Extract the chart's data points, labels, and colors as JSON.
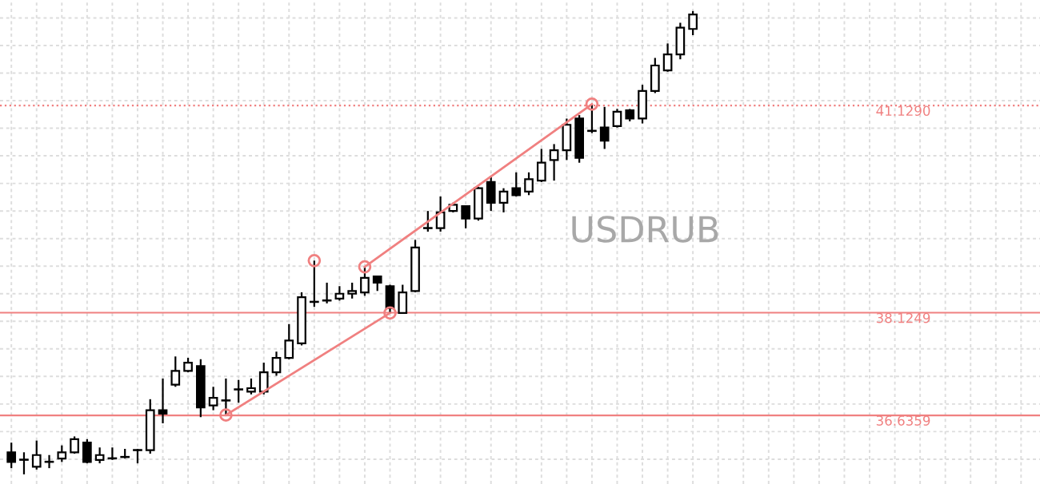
{
  "chart_data": {
    "type": "candlestick",
    "title": "USDRUB",
    "categories": [
      null,
      null,
      null,
      null,
      null,
      null,
      null,
      null,
      null,
      null,
      null,
      null,
      null,
      null,
      null,
      null,
      null,
      null,
      null,
      null,
      null,
      null,
      null,
      null,
      null,
      null,
      null,
      null,
      null,
      null,
      null,
      null,
      null,
      null,
      null,
      null,
      null,
      null,
      null,
      null,
      null,
      null,
      null,
      null,
      null,
      null,
      null,
      null,
      null,
      null,
      null,
      null,
      null,
      null,
      null,
      null,
      null,
      null,
      null,
      null,
      null,
      null,
      null,
      null,
      null,
      null,
      null,
      null,
      null,
      null,
      null,
      null,
      null,
      null,
      null,
      null,
      null,
      null,
      null,
      null,
      null,
      null
    ],
    "ohlc": [
      [
        36.1,
        36.24,
        35.87,
        35.96
      ],
      [
        35.99,
        36.1,
        35.78,
        35.99
      ],
      [
        35.89,
        36.27,
        35.85,
        36.06
      ],
      [
        35.96,
        36.06,
        35.87,
        35.96
      ],
      [
        36.01,
        36.2,
        35.96,
        36.1
      ],
      [
        36.1,
        36.33,
        36.08,
        36.29
      ],
      [
        36.24,
        36.29,
        35.94,
        35.96
      ],
      [
        35.99,
        36.17,
        35.94,
        36.06
      ],
      [
        36.01,
        36.17,
        35.99,
        36.01
      ],
      [
        36.03,
        36.15,
        36.01,
        36.03
      ],
      [
        36.13,
        36.15,
        35.94,
        36.13
      ],
      [
        36.13,
        36.87,
        36.08,
        36.71
      ],
      [
        36.71,
        37.17,
        36.52,
        36.66
      ],
      [
        37.08,
        37.49,
        37.05,
        37.28
      ],
      [
        37.28,
        37.47,
        37.26,
        37.4
      ],
      [
        37.35,
        37.45,
        36.61,
        36.75
      ],
      [
        36.78,
        37.05,
        36.71,
        36.89
      ],
      [
        36.85,
        37.17,
        36.64,
        36.85
      ],
      [
        37.01,
        37.15,
        36.82,
        37.01
      ],
      [
        36.98,
        37.17,
        36.94,
        37.03
      ],
      [
        36.98,
        37.4,
        36.94,
        37.26
      ],
      [
        37.26,
        37.56,
        37.21,
        37.47
      ],
      [
        37.47,
        37.96,
        37.45,
        37.72
      ],
      [
        37.68,
        38.42,
        37.65,
        38.35
      ],
      [
        38.28,
        38.88,
        38.21,
        38.28
      ],
      [
        38.3,
        38.56,
        38.26,
        38.3
      ],
      [
        38.33,
        38.51,
        38.3,
        38.4
      ],
      [
        38.4,
        38.56,
        38.33,
        38.44
      ],
      [
        38.42,
        38.79,
        38.37,
        38.63
      ],
      [
        38.65,
        38.65,
        38.44,
        38.56
      ],
      [
        38.51,
        38.53,
        38.12,
        38.19
      ],
      [
        38.12,
        38.53,
        38.12,
        38.42
      ],
      [
        38.44,
        39.18,
        38.42,
        39.07
      ],
      [
        39.35,
        39.6,
        39.3,
        39.35
      ],
      [
        39.35,
        39.81,
        39.3,
        39.58
      ],
      [
        39.6,
        39.72,
        39.58,
        39.69
      ],
      [
        39.67,
        39.67,
        39.35,
        39.49
      ],
      [
        39.49,
        39.95,
        39.46,
        39.93
      ],
      [
        40.02,
        40.11,
        39.6,
        39.72
      ],
      [
        39.72,
        39.93,
        39.58,
        39.88
      ],
      [
        39.93,
        40.16,
        39.81,
        39.83
      ],
      [
        39.88,
        40.16,
        39.83,
        40.06
      ],
      [
        40.04,
        40.5,
        40.02,
        40.3
      ],
      [
        40.34,
        40.57,
        40.04,
        40.48
      ],
      [
        40.48,
        40.94,
        40.34,
        40.85
      ],
      [
        40.94,
        40.99,
        40.3,
        40.37
      ],
      [
        40.76,
        41.15,
        40.73,
        40.76
      ],
      [
        40.81,
        41.11,
        40.5,
        40.62
      ],
      [
        40.83,
        41.08,
        40.81,
        41.04
      ],
      [
        41.06,
        41.08,
        40.9,
        40.94
      ],
      [
        40.94,
        41.43,
        40.87,
        41.34
      ],
      [
        41.34,
        41.82,
        41.31,
        41.71
      ],
      [
        41.64,
        42.03,
        41.62,
        41.87
      ],
      [
        41.87,
        42.33,
        41.8,
        42.26
      ],
      [
        42.24,
        42.5,
        42.15,
        42.45
      ],
      null,
      null,
      null,
      null,
      null,
      null,
      null,
      null,
      null,
      null,
      null,
      null,
      null,
      null,
      null,
      null,
      null,
      null,
      null,
      null,
      null,
      null,
      null,
      null,
      null,
      null,
      null
    ],
    "series": [
      {
        "type": "line",
        "color": "#f08080",
        "marker": "circle",
        "values": [
          null,
          null,
          null,
          null,
          null,
          null,
          null,
          null,
          null,
          null,
          null,
          null,
          null,
          null,
          null,
          null,
          null,
          36.64,
          null,
          null,
          null,
          null,
          null,
          null,
          null,
          null,
          null,
          null,
          null,
          null,
          38.12,
          null,
          null,
          null,
          null,
          null,
          null,
          null,
          null,
          null,
          null,
          null,
          null,
          null,
          null,
          null,
          null,
          null,
          null,
          null,
          null,
          null,
          null,
          null,
          null,
          null,
          null,
          null,
          null,
          null,
          null,
          null,
          null,
          null,
          null,
          null,
          null,
          null,
          null,
          null,
          null,
          null,
          null,
          null,
          null,
          null,
          null,
          null,
          null,
          null,
          null,
          null
        ]
      },
      {
        "type": "line",
        "color": "#f08080",
        "marker": "circle",
        "values": [
          null,
          null,
          null,
          null,
          null,
          null,
          null,
          null,
          null,
          null,
          null,
          null,
          null,
          null,
          null,
          null,
          null,
          null,
          null,
          null,
          null,
          null,
          null,
          null,
          null,
          null,
          null,
          null,
          38.79,
          null,
          null,
          null,
          null,
          null,
          null,
          null,
          null,
          null,
          null,
          null,
          null,
          null,
          null,
          null,
          null,
          null,
          41.15,
          null,
          null,
          null,
          null,
          null,
          null,
          null,
          null,
          null,
          null,
          null,
          null,
          null,
          null,
          null,
          null,
          null,
          null,
          null,
          null,
          null,
          null,
          null,
          null,
          null,
          null,
          null,
          null,
          null,
          null,
          null,
          null,
          null,
          null,
          null
        ]
      },
      {
        "type": "scatter",
        "color": "#f08080",
        "marker": "circle",
        "values": [
          null,
          null,
          null,
          null,
          null,
          null,
          null,
          null,
          null,
          null,
          null,
          null,
          null,
          null,
          null,
          null,
          null,
          null,
          null,
          null,
          null,
          null,
          null,
          null,
          38.88,
          null,
          null,
          null,
          null,
          null,
          null,
          null,
          null,
          null,
          null,
          null,
          null,
          null,
          null,
          null,
          null,
          null,
          null,
          null,
          null,
          null,
          null,
          null,
          null,
          null,
          null,
          null,
          null,
          null,
          null,
          null,
          null,
          null,
          null,
          null,
          null,
          null,
          null,
          null,
          null,
          null,
          null,
          null,
          null,
          null,
          null,
          null,
          null,
          null,
          null,
          null,
          null,
          null,
          null,
          null,
          null,
          null
        ]
      }
    ],
    "ref_lines": [
      {
        "axis": "y",
        "value": 41.129,
        "label": "41.1290",
        "color": "#f08080",
        "line_style": "dotted"
      },
      {
        "axis": "y",
        "value": 38.1249,
        "label": "38.1249",
        "color": "#f08080",
        "line_style": "solid"
      },
      {
        "axis": "y",
        "value": 36.6359,
        "label": "36.6359",
        "color": "#f08080",
        "line_style": "solid"
      }
    ],
    "ylim": [
      35.64,
      42.66
    ],
    "yticks": [
      {
        "value": 36.0,
        "label": null
      },
      {
        "value": 36.4,
        "label": null
      },
      {
        "value": 36.8,
        "label": null
      },
      {
        "value": 37.2,
        "label": null
      },
      {
        "value": 37.6,
        "label": null
      },
      {
        "value": 38.0,
        "label": null
      },
      {
        "value": 38.4,
        "label": null
      },
      {
        "value": 38.8,
        "label": null
      },
      {
        "value": 39.2,
        "label": null
      },
      {
        "value": 39.6,
        "label": null
      },
      {
        "value": 40.0,
        "label": null
      },
      {
        "value": 40.4,
        "label": null
      },
      {
        "value": 40.8,
        "label": null
      },
      {
        "value": 41.2,
        "label": null
      },
      {
        "value": 41.6,
        "label": null
      },
      {
        "value": 42.0,
        "label": null
      },
      {
        "value": 42.4,
        "label": null
      }
    ],
    "grid": true
  }
}
